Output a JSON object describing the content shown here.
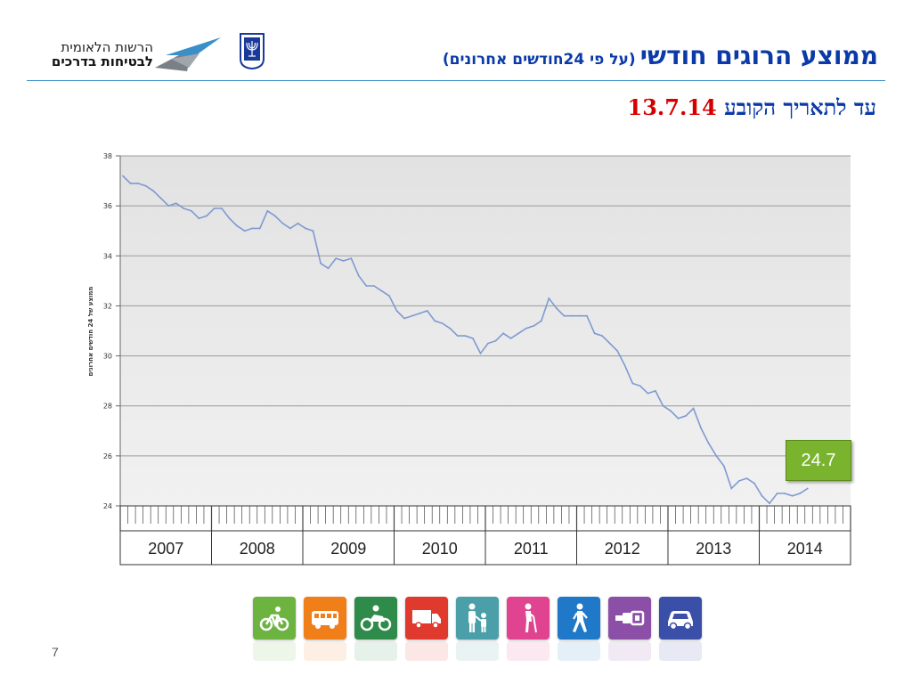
{
  "header": {
    "title_main": "ממוצע הרוגים חודשי",
    "title_sub": "(על פי 24חודשים אחרונים)",
    "subtitle_text": "עד לתאריך הקובע",
    "subtitle_date": "13.7.14",
    "org_line1": "הרשות הלאומית",
    "org_line2": "לבטיחות בדרכים",
    "accent_color": "#0b3aa8",
    "date_color": "#d40000"
  },
  "chart_data": {
    "type": "line",
    "ylabel": "ממוצע של 24 חודשים אחרונים",
    "ylim": [
      24,
      38
    ],
    "yticks": [
      24,
      26,
      28,
      30,
      32,
      34,
      36,
      38
    ],
    "grid": true,
    "line_color": "#7f9ad0",
    "year_labels": [
      "2007",
      "2008",
      "2009",
      "2010",
      "2011",
      "2012",
      "2013",
      "2014"
    ],
    "points_per_year": 12,
    "series": [
      {
        "values": [
          37.2,
          36.9,
          36.9,
          36.8,
          36.6,
          36.3,
          36.0,
          36.1,
          35.9,
          35.8,
          35.5,
          35.6,
          35.9,
          35.9,
          35.5,
          35.2,
          35.0,
          35.1,
          35.1,
          35.8,
          35.6,
          35.3,
          35.1,
          35.3,
          35.1,
          35.0,
          33.7,
          33.5,
          33.9,
          33.8,
          33.9,
          33.2,
          32.8,
          32.8,
          32.6,
          32.4,
          31.8,
          31.5,
          31.6,
          31.7,
          31.8,
          31.4,
          31.3,
          31.1,
          30.8,
          30.8,
          30.7,
          30.1,
          30.5,
          30.6,
          30.9,
          30.7,
          30.9,
          31.1,
          31.2,
          31.4,
          32.3,
          31.9,
          31.6,
          31.6,
          31.6,
          31.6,
          30.9,
          30.8,
          30.5,
          30.2,
          29.6,
          28.9,
          28.8,
          28.5,
          28.6,
          28.0,
          27.8,
          27.5,
          27.6,
          27.9,
          27.1,
          26.5,
          26.0,
          25.6,
          24.7,
          25.0,
          25.1,
          24.9,
          24.4,
          24.1,
          24.5,
          24.5,
          24.4,
          24.5,
          24.7
        ]
      }
    ],
    "last_value_label": "24.7",
    "callout_color": "#7ab42e"
  },
  "icons": [
    {
      "name": "bicycle-icon",
      "color": "#6cb33f"
    },
    {
      "name": "bus-icon",
      "color": "#f07f1a"
    },
    {
      "name": "motorcycle-icon",
      "color": "#2e8b4a"
    },
    {
      "name": "truck-icon",
      "color": "#e03a2f"
    },
    {
      "name": "parent-child-icon",
      "color": "#4a9fa8"
    },
    {
      "name": "elderly-pedestrian-icon",
      "color": "#e0438f"
    },
    {
      "name": "pedestrian-icon",
      "color": "#1f78c8"
    },
    {
      "name": "seatbelt-icon",
      "color": "#8b4fa8"
    },
    {
      "name": "car-icon",
      "color": "#3a4fa8"
    }
  ],
  "footer": {
    "page_number": "7"
  }
}
